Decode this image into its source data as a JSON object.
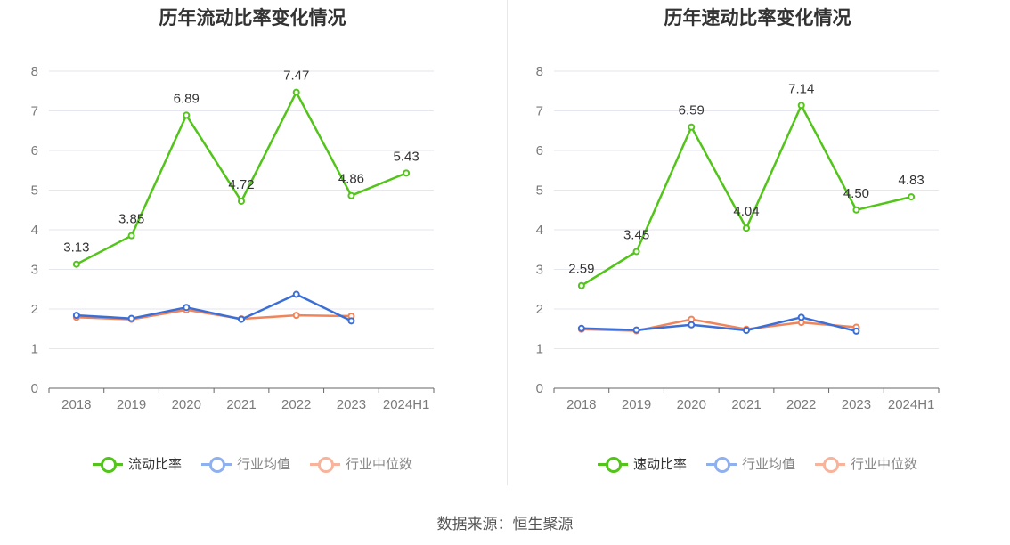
{
  "source": "数据来源：恒生聚源",
  "colors": {
    "green": "#52c41a",
    "blue": "#3b6fd8",
    "orange": "#f0845a",
    "blue_legend": "#8fb0ee",
    "orange_legend": "#f7b39c"
  },
  "chart_data": [
    {
      "type": "line",
      "title": "历年流动比率变化情况",
      "categories": [
        "2018",
        "2019",
        "2020",
        "2021",
        "2022",
        "2023",
        "2024H1"
      ],
      "ylim": [
        0,
        8
      ],
      "yticks": [
        "0",
        "1",
        "2",
        "3",
        "4",
        "5",
        "6",
        "7",
        "8"
      ],
      "grid": true,
      "legend_position": "bottom",
      "series": [
        {
          "name": "流动比率",
          "color": "#52c41a",
          "labeled": true,
          "values": [
            3.13,
            3.85,
            6.89,
            4.72,
            7.47,
            4.86,
            5.43
          ],
          "labels": [
            "3.13",
            "3.85",
            "6.89",
            "4.72",
            "7.47",
            "4.86",
            "5.43"
          ]
        },
        {
          "name": "行业均值",
          "color": "#3b6fd8",
          "labeled": false,
          "values": [
            1.84,
            1.76,
            2.04,
            1.74,
            2.37,
            1.7,
            null
          ]
        },
        {
          "name": "行业中位数",
          "color": "#f0845a",
          "labeled": false,
          "values": [
            1.79,
            1.74,
            1.98,
            1.75,
            1.84,
            1.82,
            null
          ]
        }
      ]
    },
    {
      "type": "line",
      "title": "历年速动比率变化情况",
      "categories": [
        "2018",
        "2019",
        "2020",
        "2021",
        "2022",
        "2023",
        "2024H1"
      ],
      "ylim": [
        0,
        8
      ],
      "yticks": [
        "0",
        "1",
        "2",
        "3",
        "4",
        "5",
        "6",
        "7",
        "8"
      ],
      "grid": true,
      "legend_position": "bottom",
      "series": [
        {
          "name": "速动比率",
          "color": "#52c41a",
          "labeled": true,
          "values": [
            2.59,
            3.45,
            6.59,
            4.04,
            7.14,
            4.5,
            4.83
          ],
          "labels": [
            "2.59",
            "3.45",
            "6.59",
            "4.04",
            "7.14",
            "4.50",
            "4.83"
          ]
        },
        {
          "name": "行业均值",
          "color": "#3b6fd8",
          "labeled": false,
          "values": [
            1.51,
            1.47,
            1.6,
            1.46,
            1.79,
            1.44,
            null
          ]
        },
        {
          "name": "行业中位数",
          "color": "#f0845a",
          "labeled": false,
          "values": [
            1.49,
            1.45,
            1.74,
            1.49,
            1.66,
            1.54,
            null
          ]
        }
      ]
    }
  ]
}
